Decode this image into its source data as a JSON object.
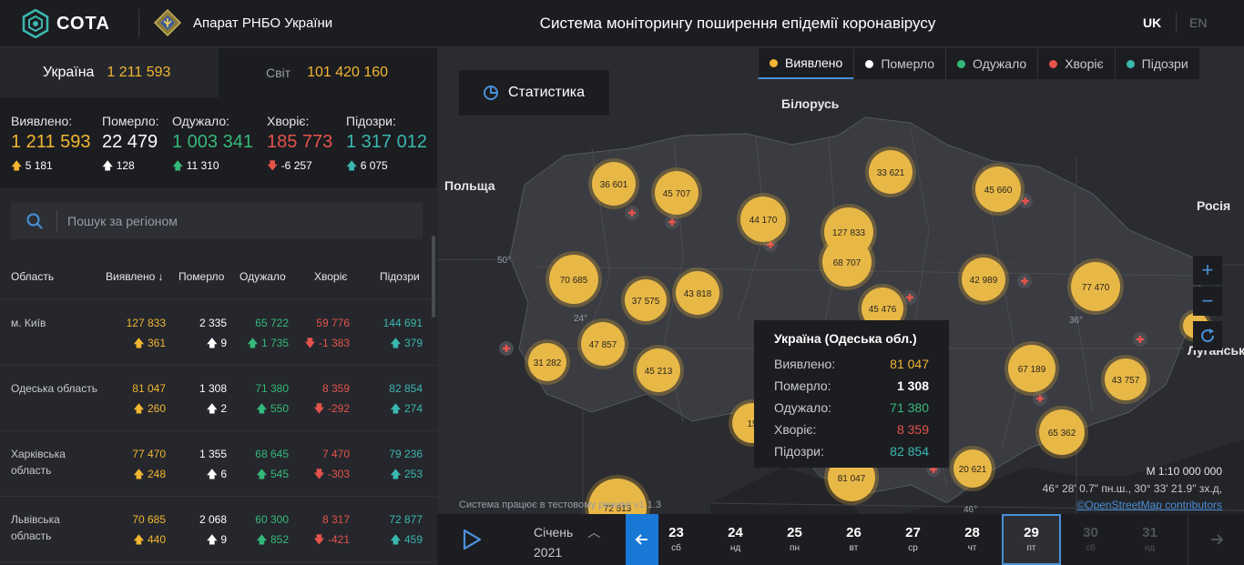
{
  "header": {
    "logo_text": "СОТА",
    "org_name": "Апарат РНБО України",
    "app_title": "Система моніторингу поширення епідемії коронавірусу",
    "lang_uk": "UK",
    "lang_en": "EN"
  },
  "scope": {
    "ukraine_label": "Україна",
    "ukraine_value": "1 211 593",
    "world_label": "Світ",
    "world_value": "101 420 160"
  },
  "totals": [
    {
      "label": "Виявлено:",
      "value": "1 211 593",
      "delta": "5 181",
      "dir": "up",
      "color": "#f2b632"
    },
    {
      "label": "Померло:",
      "value": "22 479",
      "delta": "128",
      "dir": "up",
      "color": "#ffffff"
    },
    {
      "label": "Одужало:",
      "value": "1 003 341",
      "delta": "11 310",
      "dir": "up",
      "color": "#35b97a"
    },
    {
      "label": "Хворіє:",
      "value": "185 773",
      "delta": "-6 257",
      "dir": "down",
      "color": "#e5534b"
    },
    {
      "label": "Підозри:",
      "value": "1 317 012",
      "delta": "6 075",
      "dir": "up",
      "color": "#3ab8b0"
    }
  ],
  "search": {
    "placeholder": "Пошук за регіоном"
  },
  "table": {
    "headers": [
      "Область",
      "Виявлено",
      "Померло",
      "Одужало",
      "Хворіє",
      "Підозри"
    ],
    "rows": [
      {
        "region": "м. Київ",
        "region2": "",
        "c": "127 833",
        "cd": "361",
        "d": "2 335",
        "dd": "9",
        "r": "65 722",
        "rd": "1 735",
        "s": "59 776",
        "sd": "-1 383",
        "p": "144 691",
        "pd": "379"
      },
      {
        "region": "Одеська область",
        "region2": "",
        "c": "81 047",
        "cd": "260",
        "d": "1 308",
        "dd": "2",
        "r": "71 380",
        "rd": "550",
        "s": "8 359",
        "sd": "-292",
        "p": "82 854",
        "pd": "274"
      },
      {
        "region": "Харківська",
        "region2": "область",
        "c": "77 470",
        "cd": "248",
        "d": "1 355",
        "dd": "6",
        "r": "68 645",
        "rd": "545",
        "s": "7 470",
        "sd": "-303",
        "p": "79 236",
        "pd": "253"
      },
      {
        "region": "Львівська",
        "region2": "область",
        "c": "70 685",
        "cd": "440",
        "d": "2 068",
        "dd": "9",
        "r": "60 300",
        "rd": "852",
        "s": "8 317",
        "sd": "-421",
        "p": "72 877",
        "pd": "459"
      }
    ]
  },
  "map": {
    "stat_button": "Статистика",
    "legend": [
      {
        "label": "Виявлено",
        "color": "#f2b632"
      },
      {
        "label": "Померло",
        "color": "#ffffff"
      },
      {
        "label": "Одужало",
        "color": "#35b97a"
      },
      {
        "label": "Хворіє",
        "color": "#e5534b"
      },
      {
        "label": "Підозри",
        "color": "#3ab8b0"
      }
    ],
    "country_labels": [
      "Білорусь",
      "Польща",
      "Росія",
      "Луганськ"
    ],
    "grid_labels": [
      "50°",
      "24°",
      "36°",
      "46°"
    ],
    "clusters": [
      "36 601",
      "45 707",
      "44 170",
      "127 833",
      "33 621",
      "45 660",
      "70 685",
      "37 575",
      "43 818",
      "68 707",
      "45 476",
      "42 989",
      "77 470",
      "47 857",
      "31 282",
      "45 213",
      "67 189",
      "43 757",
      "65 362",
      "20 621",
      "81 047",
      "15",
      "72 513",
      "1"
    ],
    "tooltip": {
      "title": "Україна (Одеська обл.)",
      "rows": [
        {
          "label": "Виявлено:",
          "value": "81 047",
          "color": "#f2b632"
        },
        {
          "label": "Померло:",
          "value": "1 308",
          "color": "#ffffff"
        },
        {
          "label": "Одужало:",
          "value": "71 380",
          "color": "#35b97a"
        },
        {
          "label": "Хворіє:",
          "value": "8 359",
          "color": "#e5534b"
        },
        {
          "label": "Підозри:",
          "value": "82 854",
          "color": "#3ab8b0"
        }
      ]
    },
    "scale": "М 1:10 000 000",
    "coords": "46° 28' 0.7\" пн.ш., 30° 33' 21.9\" зх.д,",
    "attribution": "©OpenStreetMap contributors",
    "test_note": "Система працює в тестовому режимі v1.1.3"
  },
  "timeline": {
    "month": "Січень",
    "year": "2021",
    "days": [
      {
        "d": "23",
        "w": "сб"
      },
      {
        "d": "24",
        "w": "нд"
      },
      {
        "d": "25",
        "w": "пн"
      },
      {
        "d": "26",
        "w": "вт"
      },
      {
        "d": "27",
        "w": "ср"
      },
      {
        "d": "28",
        "w": "чт"
      },
      {
        "d": "29",
        "w": "пт"
      },
      {
        "d": "30",
        "w": "сб"
      },
      {
        "d": "31",
        "w": "нд"
      }
    ]
  }
}
